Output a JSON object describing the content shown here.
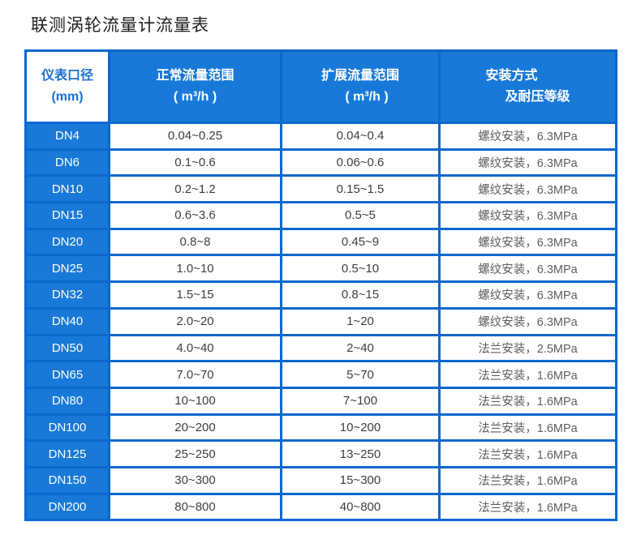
{
  "page": {
    "title": "联测涡轮流量计流量表"
  },
  "colors": {
    "accent_blue": "#1879d8",
    "border_blue": "#0d67cd",
    "header_text": "#ffffff",
    "diameter_header_text": "#1b6fd0",
    "value_text": "#3e3e3e",
    "install_text": "#5e5e5e"
  },
  "table": {
    "headers": {
      "diameter": {
        "line1": "仪表口径",
        "line2": "(mm)"
      },
      "normal_range": {
        "line1": "正常流量范围",
        "line2": "( m³/h )"
      },
      "extended_range": {
        "line1": "扩展流量范围",
        "line2": "( m³/h )"
      },
      "installation": {
        "line1": "安装方式",
        "line2": "及耐压等级"
      }
    },
    "rows": [
      {
        "dn": "DN4",
        "normal": "0.04~0.25",
        "extended": "0.04~0.4",
        "install": "螺纹安装，6.3MPa"
      },
      {
        "dn": "DN6",
        "normal": "0.1~0.6",
        "extended": "0.06~0.6",
        "install": "螺纹安装，6.3MPa"
      },
      {
        "dn": "DN10",
        "normal": "0.2~1.2",
        "extended": "0.15~1.5",
        "install": "螺纹安装，6.3MPa"
      },
      {
        "dn": "DN15",
        "normal": "0.6~3.6",
        "extended": "0.5~5",
        "install": "螺纹安装，6.3MPa"
      },
      {
        "dn": "DN20",
        "normal": "0.8~8",
        "extended": "0.45~9",
        "install": "螺纹安装，6.3MPa"
      },
      {
        "dn": "DN25",
        "normal": "1.0~10",
        "extended": "0.5~10",
        "install": "螺纹安装，6.3MPa"
      },
      {
        "dn": "DN32",
        "normal": "1.5~15",
        "extended": "0.8~15",
        "install": "螺纹安装，6.3MPa"
      },
      {
        "dn": "DN40",
        "normal": "2.0~20",
        "extended": "1~20",
        "install": "螺纹安装，6.3MPa"
      },
      {
        "dn": "DN50",
        "normal": "4.0~40",
        "extended": "2~40",
        "install": "法兰安装，2.5MPa"
      },
      {
        "dn": "DN65",
        "normal": "7.0~70",
        "extended": "5~70",
        "install": "法兰安装，1.6MPa"
      },
      {
        "dn": "DN80",
        "normal": "10~100",
        "extended": "7~100",
        "install": "法兰安装，1.6MPa"
      },
      {
        "dn": "DN100",
        "normal": "20~200",
        "extended": "10~200",
        "install": "法兰安装，1.6MPa"
      },
      {
        "dn": "DN125",
        "normal": "25~250",
        "extended": "13~250",
        "install": "法兰安装，1.6MPa"
      },
      {
        "dn": "DN150",
        "normal": "30~300",
        "extended": "15~300",
        "install": "法兰安装，1.6MPa"
      },
      {
        "dn": "DN200",
        "normal": "80~800",
        "extended": "40~800",
        "install": "法兰安装，1.6MPa"
      }
    ]
  }
}
